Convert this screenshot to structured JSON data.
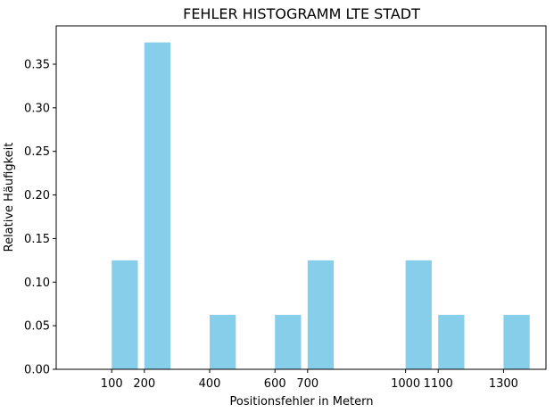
{
  "chart_data": {
    "type": "bar",
    "title": "FEHLER HISTOGRAMM LTE STADT",
    "xlabel": "Positionsfehler in Metern",
    "ylabel": "Relative Häufigkeit",
    "bar_color": "#87ceeb",
    "x_ticks": [
      100,
      200,
      400,
      600,
      700,
      1000,
      1100,
      1300
    ],
    "y_ticks": [
      "0.00",
      "0.05",
      "0.10",
      "0.15",
      "0.20",
      "0.25",
      "0.30",
      "0.35"
    ],
    "xlim": [
      -70,
      1430
    ],
    "ylim": [
      0,
      0.394
    ],
    "bar_width": 80,
    "bars": [
      {
        "x": 140,
        "value": 0.125
      },
      {
        "x": 240,
        "value": 0.375
      },
      {
        "x": 440,
        "value": 0.0625
      },
      {
        "x": 640,
        "value": 0.0625
      },
      {
        "x": 740,
        "value": 0.125
      },
      {
        "x": 1040,
        "value": 0.125
      },
      {
        "x": 1140,
        "value": 0.0625
      },
      {
        "x": 1340,
        "value": 0.0625
      }
    ],
    "grid": false,
    "legend": "none"
  }
}
